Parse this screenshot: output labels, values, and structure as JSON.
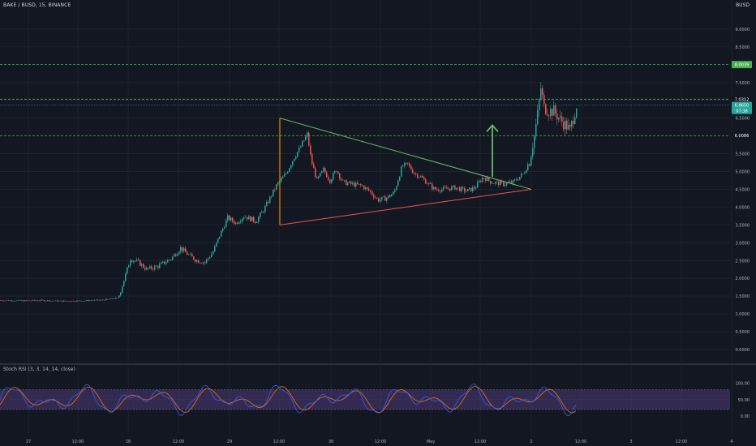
{
  "header": {
    "symbol_title": "BAKE / BUSD, 15, BINANCE",
    "quote_currency": "BUSD"
  },
  "oscillator": {
    "title": "Stoch RSI (3, 3, 14, 14, close)",
    "ticks": [
      "100.00",
      "50.00",
      "0.00"
    ],
    "band_color": "#7e57c2",
    "k_color": "#2962ff",
    "d_color": "#ff6d00"
  },
  "price_labels": {
    "upper_target": "8.0039",
    "mid_target": "7.0312",
    "last_price": "6.8650",
    "countdown": "07:38",
    "support": "6.0086"
  },
  "colors": {
    "up": "#26a69a",
    "down": "#ef5350",
    "triangle_top": "#66bb6a",
    "triangle_bottom": "#ef5350",
    "triangle_left": "#ff9800",
    "arrow": "#66bb6a",
    "hline": "#4caf50",
    "label_green": "#4caf50",
    "label_last": "#26a69a",
    "label_black": "#131722"
  },
  "chart_data": {
    "type": "candlestick",
    "symbol": "BAKE / BUSD",
    "interval": "15",
    "exchange": "BINANCE",
    "y_ticks": [
      "9.0000",
      "8.5000",
      "7.5000",
      "7.0000",
      "6.5000",
      "5.5000",
      "5.0000",
      "4.5000",
      "4.0000",
      "3.5000",
      "3.0000",
      "2.5000",
      "2.0000",
      "1.5000",
      "1.0000",
      "0.5000",
      "0.0000"
    ],
    "x_ticks": [
      "27",
      "12:00",
      "28",
      "12:00",
      "29",
      "12:00",
      "30",
      "12:00",
      "May",
      "12:00",
      "2",
      "12:00",
      "3",
      "12:00",
      "4"
    ],
    "ylim": [
      0,
      9.6
    ],
    "price_path": [
      [
        0,
        1.38
      ],
      [
        25,
        1.37
      ],
      [
        50,
        1.38
      ],
      [
        75,
        1.36
      ],
      [
        100,
        1.37
      ],
      [
        125,
        1.39
      ],
      [
        145,
        1.45
      ],
      [
        152,
        1.95
      ],
      [
        160,
        2.55
      ],
      [
        170,
        2.45
      ],
      [
        180,
        2.25
      ],
      [
        195,
        2.35
      ],
      [
        210,
        2.55
      ],
      [
        222,
        2.85
      ],
      [
        232,
        2.65
      ],
      [
        242,
        2.5
      ],
      [
        252,
        2.45
      ],
      [
        262,
        2.75
      ],
      [
        270,
        3.2
      ],
      [
        280,
        3.7
      ],
      [
        290,
        3.55
      ],
      [
        300,
        3.75
      ],
      [
        315,
        3.6
      ],
      [
        325,
        3.95
      ],
      [
        340,
        4.6
      ],
      [
        352,
        4.95
      ],
      [
        362,
        5.4
      ],
      [
        370,
        5.7
      ],
      [
        378,
        6.05
      ],
      [
        383,
        5.3
      ],
      [
        390,
        4.75
      ],
      [
        398,
        5.05
      ],
      [
        406,
        4.75
      ],
      [
        414,
        5.05
      ],
      [
        422,
        4.7
      ],
      [
        432,
        4.65
      ],
      [
        445,
        4.6
      ],
      [
        455,
        4.45
      ],
      [
        465,
        4.2
      ],
      [
        475,
        4.25
      ],
      [
        485,
        4.4
      ],
      [
        495,
        5.15
      ],
      [
        502,
        5.2
      ],
      [
        510,
        4.95
      ],
      [
        518,
        4.85
      ],
      [
        525,
        4.7
      ],
      [
        535,
        4.5
      ],
      [
        545,
        4.5
      ],
      [
        560,
        4.55
      ],
      [
        575,
        4.45
      ],
      [
        585,
        4.55
      ],
      [
        595,
        4.85
      ],
      [
        605,
        4.7
      ],
      [
        620,
        4.65
      ],
      [
        632,
        4.7
      ],
      [
        645,
        4.95
      ],
      [
        652,
        5.3
      ],
      [
        658,
        6.0
      ],
      [
        662,
        6.6
      ],
      [
        666,
        7.35
      ],
      [
        670,
        6.8
      ],
      [
        676,
        6.7
      ],
      [
        682,
        6.7
      ],
      [
        690,
        6.45
      ],
      [
        697,
        6.3
      ],
      [
        702,
        6.15
      ],
      [
        707,
        6.6
      ],
      [
        710,
        6.865
      ]
    ],
    "horizontal_lines": [
      8.0039,
      7.0312,
      6.0086
    ],
    "last_price": 6.865,
    "triangle": {
      "apex_left_top": [
        345,
        6.5
      ],
      "apex_left_bottom": [
        345,
        3.5
      ],
      "apex_right": [
        655,
        4.5
      ]
    },
    "arrow": {
      "x": 607,
      "from": 4.85,
      "to": 6.3
    },
    "stoch_rsi": {
      "range": [
        0,
        100
      ],
      "band": [
        20,
        80
      ]
    }
  }
}
